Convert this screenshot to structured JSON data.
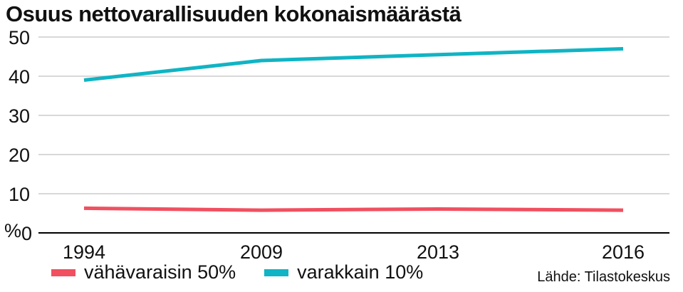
{
  "chart_data": {
    "type": "line",
    "title": "Osuus nettovarallisuuden kokonaismäärästä",
    "x": [
      "1994",
      "2009",
      "2013",
      "2016"
    ],
    "series": [
      {
        "name": "vähävaraisin 50%",
        "values": [
          6.3,
          5.8,
          6.1,
          5.8
        ],
        "color": "#f05060"
      },
      {
        "name": "varakkain 10%",
        "values": [
          39,
          44,
          45.5,
          47
        ],
        "color": "#10b4c4"
      }
    ],
    "ylim": [
      0,
      50
    ],
    "yticks": [
      "50",
      "40",
      "30",
      "20",
      "10",
      "0"
    ],
    "yunit": "%",
    "grid": true,
    "legend": "bottom-left"
  },
  "source": "Lähde: Tilastokeskus"
}
